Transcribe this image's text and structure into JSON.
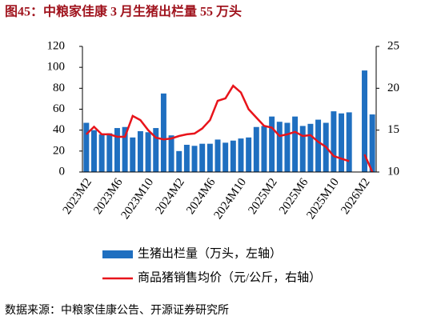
{
  "chart_data": {
    "type": "bar_line",
    "title": "图45：中粮家佳康 3 月生猪出栏量 55 万头",
    "source": "数据来源：中粮家佳康公告、开源证券研究所",
    "categories": [
      "2023M2",
      null,
      null,
      null,
      "2023M6",
      null,
      null,
      null,
      "2023M10",
      null,
      null,
      null,
      "2024M2",
      null,
      null,
      null,
      "2024M6",
      null,
      null,
      null,
      "2024M10",
      null,
      null,
      null,
      "2025M2",
      null,
      null,
      null,
      "2025M6",
      null,
      null,
      null,
      "2025M10",
      null,
      null,
      null,
      "2026M2",
      null
    ],
    "series": [
      {
        "name": "生猪出栏量（万头，左轴）",
        "color": "#1f6fc0",
        "kind": "bar",
        "values": [
          47,
          40,
          36,
          37,
          42,
          43,
          33,
          39,
          38,
          42,
          75,
          35,
          20,
          26,
          25,
          27,
          27,
          31,
          28,
          30,
          32,
          33,
          43,
          44,
          53,
          48,
          47,
          53,
          44,
          46,
          50,
          47,
          58,
          56,
          57,
          null,
          97,
          55
        ]
      },
      {
        "name": "商品猪销售均价（元/公斤，右轴）",
        "color": "#e8141b",
        "kind": "line",
        "axis": "y2",
        "values": [
          14.5,
          15.4,
          14.5,
          14.5,
          14.2,
          14.2,
          16.7,
          16.2,
          15.0,
          14.1,
          13.9,
          14.0,
          14.3,
          14.5,
          14.6,
          15.2,
          16.2,
          18.5,
          18.8,
          20.3,
          19.5,
          17.5,
          16.5,
          15.5,
          15.3,
          14.3,
          14.5,
          14.8,
          14.3,
          14.4,
          13.6,
          13.0,
          11.9,
          11.6,
          11.3,
          null,
          12.1,
          10
        ]
      }
    ],
    "ylim": [
      0,
      120
    ],
    "yticks": [
      0,
      20,
      40,
      60,
      80,
      100,
      120
    ],
    "y2lim": [
      10,
      25
    ],
    "y2ticks": [
      10,
      15,
      20,
      25
    ],
    "legend": "bottom"
  }
}
